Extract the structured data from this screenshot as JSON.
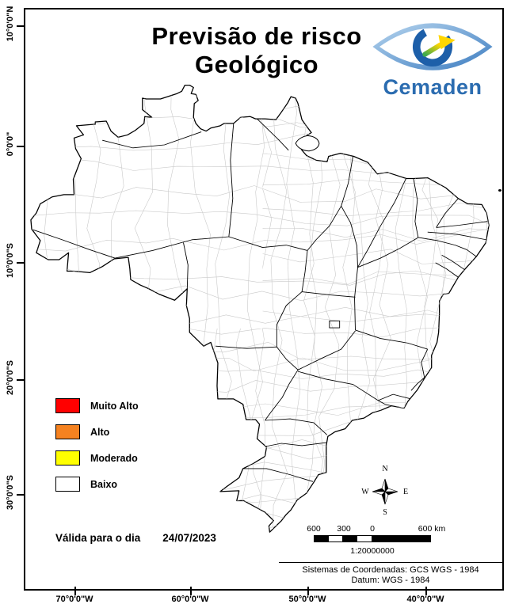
{
  "title": {
    "line1": "Previsão de risco",
    "line2": "Geológico"
  },
  "logo": {
    "name": "Cemaden"
  },
  "axes": {
    "latitudes": [
      "10°0'0\"N",
      "0°0'0\"",
      "10°0'0\"S",
      "20°0'0\"S",
      "30°0'0\"S"
    ],
    "longitudes": [
      "70°0'0\"W",
      "60°0'0\"W",
      "50°0'0\"W",
      "40°0'0\"W"
    ]
  },
  "legend": {
    "items": [
      {
        "label": "Muito Alto",
        "color": "#FF0000"
      },
      {
        "label": "Alto",
        "color": "#F58220"
      },
      {
        "label": "Moderado",
        "color": "#FFFF00"
      },
      {
        "label": "Baixo",
        "color": "#FFFFFF"
      }
    ]
  },
  "validity": {
    "label": "Válida para o dia",
    "date": "24/07/2023"
  },
  "compass": {
    "north": "N",
    "south": "S",
    "east": "E",
    "west": "W"
  },
  "scalebar": {
    "ticks": [
      "600",
      "300",
      "0"
    ],
    "end": "600 km",
    "ratio": "1:20000000"
  },
  "crs": {
    "line1": "Sistemas de Coordenadas: GCS WGS - 1984",
    "line2": "Datum: WGS - 1984"
  }
}
